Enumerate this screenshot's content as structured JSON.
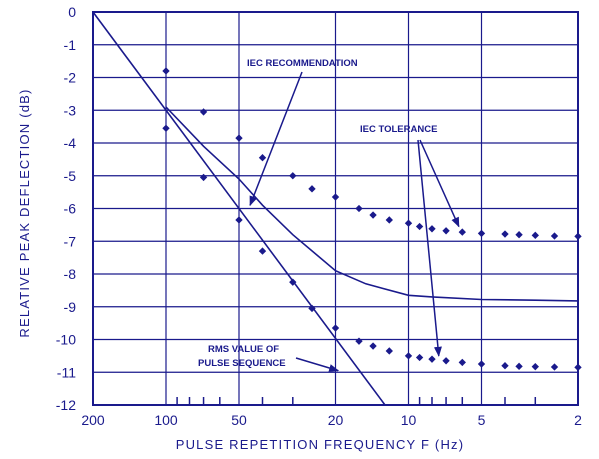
{
  "chart_data": {
    "type": "line",
    "xlabel": "PULSE REPETITION FREQUENCY F (Hz)",
    "ylabel": "RELATIVE PEAK DEFLECTION (dB)",
    "x_scale": "log-reversed",
    "xlim": [
      200,
      2
    ],
    "ylim": [
      -12,
      0
    ],
    "grid": true,
    "x_major_ticks": [
      200,
      100,
      50,
      20,
      10,
      5,
      2
    ],
    "x_minor_ticks": [
      90,
      80,
      70,
      60,
      40,
      30,
      9,
      8,
      7,
      6,
      4,
      3
    ],
    "x_tick_labels": [
      "200",
      "100",
      "50",
      "20",
      "10",
      "5",
      "2"
    ],
    "y_ticks": [
      0,
      -1,
      -2,
      -3,
      -4,
      -5,
      -6,
      -7,
      -8,
      -9,
      -10,
      -11,
      -12
    ],
    "y_tick_labels": [
      "0",
      "-1",
      "-2",
      "-3",
      "-4",
      "-5",
      "-6",
      "-7",
      "-8",
      "-9",
      "-10",
      "-11",
      "-12"
    ],
    "series": [
      {
        "name": "IEC RECOMMENDATION",
        "style": "line",
        "x": [
          100,
          70,
          50,
          40,
          30,
          20,
          15,
          10,
          8,
          5,
          3,
          2
        ],
        "y": [
          -2.9,
          -4.1,
          -5.1,
          -5.9,
          -6.8,
          -7.9,
          -8.3,
          -8.65,
          -8.7,
          -8.78,
          -8.8,
          -8.82
        ]
      },
      {
        "name": "RMS VALUE OF PULSE SEQUENCE",
        "style": "line",
        "x": [
          200,
          12.5
        ],
        "y": [
          0,
          -12
        ]
      },
      {
        "name": "IEC TOLERANCE (upper)",
        "style": "points",
        "x": [
          100,
          70,
          50,
          40,
          30,
          25,
          20,
          16,
          14,
          12,
          10,
          9,
          8,
          7,
          6,
          5,
          4,
          3.5,
          3,
          2.5,
          2
        ],
        "y": [
          -1.8,
          -3.05,
          -3.85,
          -4.45,
          -5.0,
          -5.4,
          -5.65,
          -6.0,
          -6.2,
          -6.35,
          -6.45,
          -6.55,
          -6.62,
          -6.68,
          -6.72,
          -6.76,
          -6.78,
          -6.8,
          -6.82,
          -6.84,
          -6.85
        ]
      },
      {
        "name": "IEC TOLERANCE (lower)",
        "style": "points",
        "x": [
          100,
          70,
          50,
          40,
          30,
          25,
          20,
          16,
          14,
          12,
          10,
          9,
          8,
          7,
          6,
          5,
          4,
          3.5,
          3,
          2.5,
          2
        ],
        "y": [
          -3.55,
          -5.05,
          -6.35,
          -7.3,
          -8.25,
          -9.05,
          -9.65,
          -10.05,
          -10.2,
          -10.35,
          -10.5,
          -10.55,
          -10.6,
          -10.65,
          -10.7,
          -10.75,
          -10.8,
          -10.82,
          -10.83,
          -10.84,
          -10.85
        ]
      }
    ],
    "annotations": [
      {
        "text": "IEC RECOMMENDATION",
        "target_x": 45,
        "target_y": -5.9
      },
      {
        "text": "IEC TOLERANCE",
        "target_x": 6.2,
        "target_y": -6.55
      },
      {
        "text": "",
        "target_x": 7.5,
        "target_y": -10.5
      },
      {
        "text": "RMS VALUE OF",
        "target_x": 19.5,
        "target_y": -10.95
      },
      {
        "text": "PULSE SEQUENCE",
        "target_x": null,
        "target_y": null
      }
    ]
  }
}
